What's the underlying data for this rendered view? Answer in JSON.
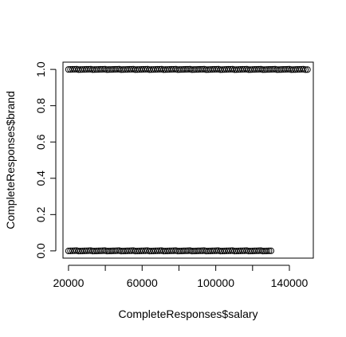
{
  "chart_data": {
    "type": "scatter",
    "xlabel": "CompleteResponses$salary",
    "ylabel": "CompleteResponses$brand",
    "xlim": [
      17000,
      153000
    ],
    "ylim": [
      -0.04,
      1.04
    ],
    "x_ticks": [
      20000,
      40000,
      60000,
      80000,
      100000,
      120000,
      140000
    ],
    "x_tick_labels": [
      "20000",
      "",
      "60000",
      "",
      "100000",
      "",
      "140000"
    ],
    "y_ticks": [
      0.0,
      0.2,
      0.4,
      0.6,
      0.8,
      1.0
    ],
    "y_tick_labels": [
      "0.0",
      "0.2",
      "0.4",
      "0.6",
      "0.8",
      "1.0"
    ],
    "series": [
      {
        "y": 1,
        "x_range": [
          20000,
          150000
        ]
      },
      {
        "y": 0,
        "x_range": [
          20000,
          130000
        ]
      }
    ],
    "grid": false,
    "marker": "open-circle"
  }
}
